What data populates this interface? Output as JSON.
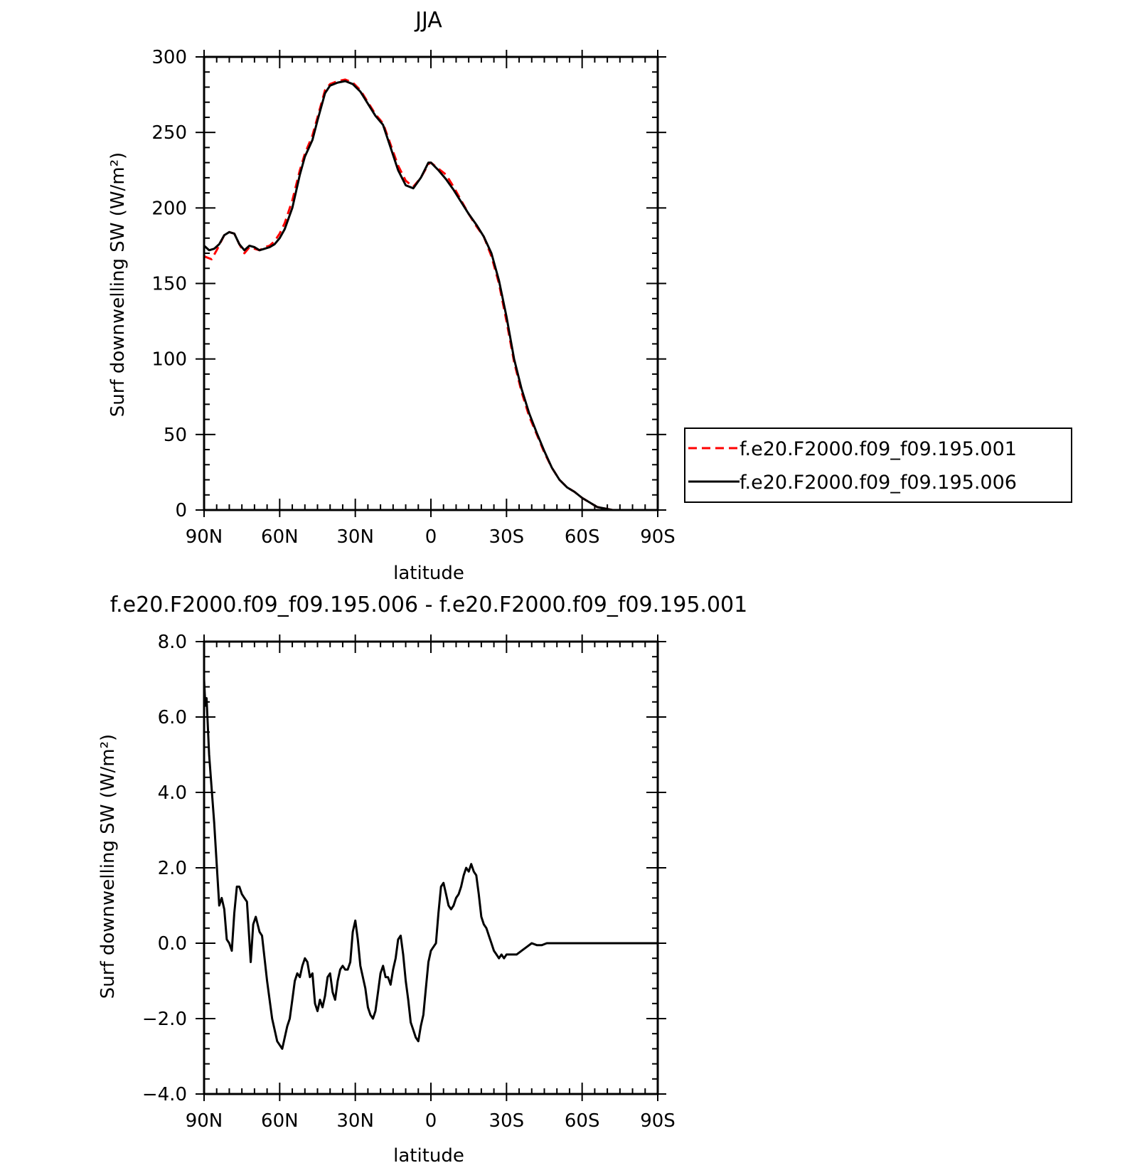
{
  "chart_data": [
    {
      "type": "line",
      "title": "JJA",
      "xlabel": "latitude",
      "ylabel": "Surf downwelling SW (W/m²)",
      "xlim": [
        90,
        -90
      ],
      "ylim": [
        0,
        300
      ],
      "x_ticks": [
        {
          "value": 90,
          "label": "90N"
        },
        {
          "value": 60,
          "label": "60N"
        },
        {
          "value": 30,
          "label": "30N"
        },
        {
          "value": 0,
          "label": "0"
        },
        {
          "value": -30,
          "label": "30S"
        },
        {
          "value": -60,
          "label": "60S"
        },
        {
          "value": -90,
          "label": "90S"
        }
      ],
      "y_ticks": [
        {
          "value": 0,
          "label": "0"
        },
        {
          "value": 50,
          "label": "50"
        },
        {
          "value": 100,
          "label": "100"
        },
        {
          "value": 150,
          "label": "150"
        },
        {
          "value": 200,
          "label": "200"
        },
        {
          "value": 250,
          "label": "250"
        },
        {
          "value": 300,
          "label": "300"
        }
      ],
      "legend": {
        "position": "right"
      },
      "series": [
        {
          "name": "f.e20.F2000.f09_f09.195.001",
          "color": "#ff0000",
          "dash": "dashed",
          "points": [
            [
              90,
              168
            ],
            [
              87,
              166
            ],
            [
              85,
              172
            ],
            [
              82,
              182
            ],
            [
              80,
              184
            ],
            [
              78,
              183
            ],
            [
              76,
              176
            ],
            [
              74,
              170
            ],
            [
              72,
              174
            ],
            [
              70,
              173
            ],
            [
              68,
              172
            ],
            [
              66,
              174
            ],
            [
              64,
              175
            ],
            [
              62,
              178
            ],
            [
              60,
              183
            ],
            [
              58,
              190
            ],
            [
              55,
              205
            ],
            [
              52,
              225
            ],
            [
              50,
              236
            ],
            [
              47,
              248
            ],
            [
              45,
              260
            ],
            [
              42,
              278
            ],
            [
              40,
              282
            ],
            [
              37,
              284
            ],
            [
              34,
              285
            ],
            [
              31,
              283
            ],
            [
              28,
              278
            ],
            [
              25,
              270
            ],
            [
              22,
              262
            ],
            [
              19,
              256
            ],
            [
              16,
              242
            ],
            [
              13,
              228
            ],
            [
              10,
              218
            ],
            [
              7,
              214
            ],
            [
              4,
              220
            ],
            [
              1,
              229
            ],
            [
              0,
              230
            ],
            [
              -3,
              226
            ],
            [
              -6,
              222
            ],
            [
              -9,
              214
            ],
            [
              -12,
              205
            ],
            [
              -15,
              196
            ],
            [
              -18,
              188
            ],
            [
              -21,
              181
            ],
            [
              -24,
              168
            ],
            [
              -27,
              150
            ],
            [
              -30,
              125
            ],
            [
              -33,
              98
            ],
            [
              -36,
              78
            ],
            [
              -39,
              62
            ],
            [
              -42,
              50
            ],
            [
              -45,
              38
            ],
            [
              -48,
              28
            ],
            [
              -51,
              20
            ],
            [
              -54,
              15
            ],
            [
              -57,
              12
            ],
            [
              -60,
              8
            ],
            [
              -63,
              5
            ],
            [
              -66,
              2
            ],
            [
              -69,
              1
            ],
            [
              -72,
              0
            ],
            [
              -75,
              0
            ]
          ]
        },
        {
          "name": "f.e20.F2000.f09_f09.195.006",
          "color": "#000000",
          "dash": "solid",
          "points": [
            [
              90,
              175
            ],
            [
              88,
              172
            ],
            [
              86,
              173
            ],
            [
              84,
              176
            ],
            [
              82,
              182
            ],
            [
              80,
              184
            ],
            [
              78,
              183
            ],
            [
              76,
              176
            ],
            [
              74,
              172
            ],
            [
              72,
              175
            ],
            [
              70,
              174
            ],
            [
              68,
              172
            ],
            [
              66,
              173
            ],
            [
              64,
              174
            ],
            [
              62,
              176
            ],
            [
              60,
              180
            ],
            [
              58,
              186
            ],
            [
              55,
              200
            ],
            [
              52,
              222
            ],
            [
              50,
              234
            ],
            [
              47,
              245
            ],
            [
              45,
              258
            ],
            [
              42,
              276
            ],
            [
              40,
              281
            ],
            [
              37,
              283
            ],
            [
              34,
              284
            ],
            [
              31,
              282
            ],
            [
              28,
              277
            ],
            [
              25,
              269
            ],
            [
              22,
              261
            ],
            [
              19,
              255
            ],
            [
              16,
              240
            ],
            [
              13,
              225
            ],
            [
              10,
              215
            ],
            [
              7,
              213
            ],
            [
              4,
              220
            ],
            [
              1,
              230
            ],
            [
              0,
              230
            ],
            [
              -3,
              225
            ],
            [
              -6,
              219
            ],
            [
              -9,
              212
            ],
            [
              -12,
              204
            ],
            [
              -15,
              196
            ],
            [
              -18,
              189
            ],
            [
              -21,
              181
            ],
            [
              -24,
              170
            ],
            [
              -27,
              152
            ],
            [
              -30,
              128
            ],
            [
              -33,
              100
            ],
            [
              -36,
              80
            ],
            [
              -39,
              64
            ],
            [
              -42,
              51
            ],
            [
              -45,
              39
            ],
            [
              -48,
              28
            ],
            [
              -51,
              20
            ],
            [
              -54,
              15
            ],
            [
              -57,
              12
            ],
            [
              -60,
              8
            ],
            [
              -63,
              5
            ],
            [
              -66,
              2
            ],
            [
              -69,
              1
            ],
            [
              -72,
              0
            ],
            [
              -75,
              0
            ]
          ]
        }
      ]
    },
    {
      "type": "line",
      "title": "f.e20.F2000.f09_f09.195.006 - f.e20.F2000.f09_f09.195.001",
      "xlabel": "latitude",
      "ylabel": "Surf downwelling SW (W/m²)",
      "xlim": [
        90,
        -90
      ],
      "ylim": [
        -4,
        8
      ],
      "x_ticks": [
        {
          "value": 90,
          "label": "90N"
        },
        {
          "value": 60,
          "label": "60N"
        },
        {
          "value": 30,
          "label": "30N"
        },
        {
          "value": 0,
          "label": "0"
        },
        {
          "value": -30,
          "label": "30S"
        },
        {
          "value": -60,
          "label": "60S"
        },
        {
          "value": -90,
          "label": "90S"
        }
      ],
      "y_ticks": [
        {
          "value": -4,
          "label": "−4.0"
        },
        {
          "value": -2,
          "label": "−2.0"
        },
        {
          "value": 0,
          "label": "0.0"
        },
        {
          "value": 2,
          "label": "2.0"
        },
        {
          "value": 4,
          "label": "4.0"
        },
        {
          "value": 6,
          "label": "6.0"
        },
        {
          "value": 8,
          "label": "8.0"
        }
      ],
      "series": [
        {
          "color": "#000000",
          "dash": "solid",
          "points": [
            [
              90,
              7.0
            ],
            [
              89.5,
              6.3
            ],
            [
              89,
              6.5
            ],
            [
              88,
              5.0
            ],
            [
              86,
              3.2
            ],
            [
              84,
              1.0
            ],
            [
              83,
              1.2
            ],
            [
              82,
              0.9
            ],
            [
              81,
              0.1
            ],
            [
              80,
              0.0
            ],
            [
              79,
              -0.2
            ],
            [
              78,
              0.8
            ],
            [
              77,
              1.5
            ],
            [
              76,
              1.5
            ],
            [
              75,
              1.3
            ],
            [
              74,
              1.2
            ],
            [
              73,
              1.1
            ],
            [
              71.5,
              -0.5
            ],
            [
              70.5,
              0.5
            ],
            [
              69.5,
              0.7
            ],
            [
              68,
              0.3
            ],
            [
              67,
              0.2
            ],
            [
              65,
              -1.0
            ],
            [
              63,
              -2.0
            ],
            [
              61,
              -2.6
            ],
            [
              59,
              -2.8
            ],
            [
              57,
              -2.2
            ],
            [
              56,
              -2.0
            ],
            [
              55,
              -1.5
            ],
            [
              54,
              -1.0
            ],
            [
              53,
              -0.8
            ],
            [
              52,
              -0.9
            ],
            [
              51,
              -0.6
            ],
            [
              50,
              -0.4
            ],
            [
              49,
              -0.5
            ],
            [
              48,
              -0.9
            ],
            [
              47,
              -0.8
            ],
            [
              46,
              -1.6
            ],
            [
              45,
              -1.8
            ],
            [
              44,
              -1.5
            ],
            [
              43,
              -1.7
            ],
            [
              42,
              -1.4
            ],
            [
              41,
              -0.9
            ],
            [
              40,
              -0.8
            ],
            [
              39,
              -1.3
            ],
            [
              38,
              -1.5
            ],
            [
              37,
              -1.0
            ],
            [
              36,
              -0.7
            ],
            [
              35,
              -0.6
            ],
            [
              34,
              -0.7
            ],
            [
              33,
              -0.7
            ],
            [
              32,
              -0.5
            ],
            [
              31,
              0.3
            ],
            [
              30,
              0.6
            ],
            [
              29,
              0.1
            ],
            [
              28,
              -0.6
            ],
            [
              27,
              -0.9
            ],
            [
              26,
              -1.2
            ],
            [
              25,
              -1.7
            ],
            [
              24,
              -1.9
            ],
            [
              23,
              -2.0
            ],
            [
              22,
              -1.8
            ],
            [
              21,
              -1.3
            ],
            [
              20,
              -0.8
            ],
            [
              19,
              -0.6
            ],
            [
              18,
              -0.9
            ],
            [
              17,
              -0.9
            ],
            [
              16,
              -1.1
            ],
            [
              15,
              -0.7
            ],
            [
              14,
              -0.4
            ],
            [
              13,
              0.1
            ],
            [
              12,
              0.2
            ],
            [
              11,
              -0.3
            ],
            [
              10,
              -1.0
            ],
            [
              9,
              -1.5
            ],
            [
              8,
              -2.1
            ],
            [
              7,
              -2.3
            ],
            [
              6,
              -2.5
            ],
            [
              5,
              -2.6
            ],
            [
              4,
              -2.2
            ],
            [
              3,
              -1.9
            ],
            [
              2,
              -1.2
            ],
            [
              1,
              -0.5
            ],
            [
              0,
              -0.2
            ],
            [
              -1,
              -0.1
            ],
            [
              -2,
              0.0
            ],
            [
              -3,
              0.8
            ],
            [
              -4,
              1.5
            ],
            [
              -5,
              1.6
            ],
            [
              -6,
              1.3
            ],
            [
              -7,
              1.0
            ],
            [
              -8,
              0.9
            ],
            [
              -9,
              1.0
            ],
            [
              -10,
              1.2
            ],
            [
              -11,
              1.3
            ],
            [
              -12,
              1.5
            ],
            [
              -13,
              1.8
            ],
            [
              -14,
              2.0
            ],
            [
              -15,
              1.9
            ],
            [
              -16,
              2.1
            ],
            [
              -17,
              1.9
            ],
            [
              -18,
              1.8
            ],
            [
              -19,
              1.3
            ],
            [
              -20,
              0.7
            ],
            [
              -21,
              0.5
            ],
            [
              -22,
              0.4
            ],
            [
              -23,
              0.2
            ],
            [
              -24,
              0.0
            ],
            [
              -25,
              -0.2
            ],
            [
              -26,
              -0.3
            ],
            [
              -27,
              -0.4
            ],
            [
              -28,
              -0.3
            ],
            [
              -29,
              -0.4
            ],
            [
              -30,
              -0.3
            ],
            [
              -32,
              -0.3
            ],
            [
              -34,
              -0.3
            ],
            [
              -36,
              -0.2
            ],
            [
              -38,
              -0.1
            ],
            [
              -40,
              0.0
            ],
            [
              -42,
              -0.05
            ],
            [
              -44,
              -0.05
            ],
            [
              -46,
              0.0
            ],
            [
              -50,
              0.0
            ],
            [
              -55,
              0.0
            ],
            [
              -60,
              0.0
            ],
            [
              -65,
              0.0
            ],
            [
              -70,
              0.0
            ],
            [
              -75,
              0.0
            ],
            [
              -80,
              0.0
            ],
            [
              -85,
              0.0
            ],
            [
              -90,
              0.0
            ]
          ]
        }
      ]
    }
  ]
}
